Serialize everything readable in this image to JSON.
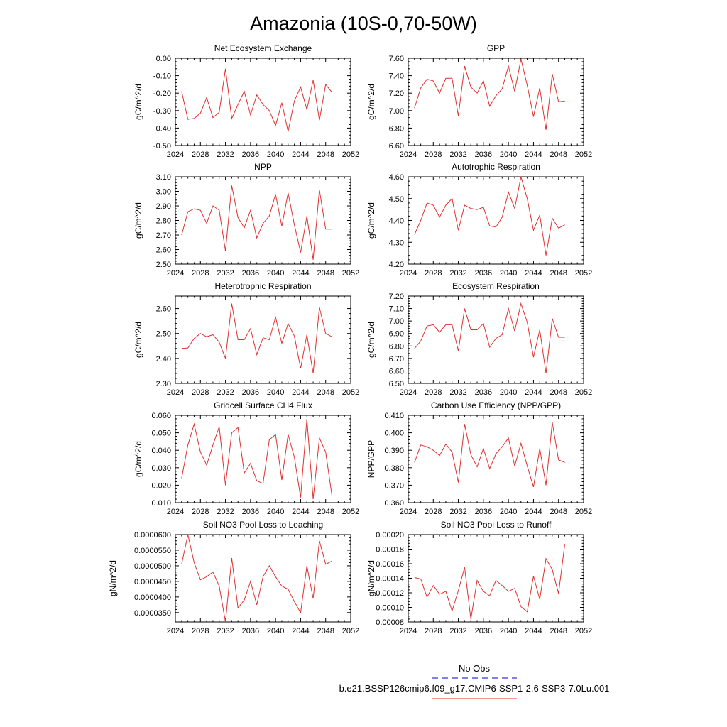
{
  "title": "Amazonia (10S-0,70-50W)",
  "legend": {
    "entries": [
      {
        "label": "No Obs",
        "color": "#0000cc",
        "dash": "dashed"
      },
      {
        "label": "b.e21.BSSP126cmip6.f09_g17.CMIP6-SSP1-2.6-SSP3-7.0Lu.001",
        "color": "#e03030",
        "dash": "solid"
      }
    ]
  },
  "chart_data": [
    {
      "type": "line",
      "title": "Net Ecosystem Exchange",
      "ylabel": "gC/m^2/d",
      "xlim": [
        2024,
        2052
      ],
      "ylim": [
        -0.5,
        0.0
      ],
      "xticks": [
        "2024",
        "2028",
        "2032",
        "2036",
        "2040",
        "2044",
        "2048",
        "2052"
      ],
      "yticks": [
        "0.00",
        "-0.10",
        "-0.20",
        "-0.30",
        "-0.40",
        "-0.50"
      ],
      "x": [
        2025,
        2026,
        2027,
        2028,
        2029,
        2030,
        2031,
        2032,
        2033,
        2034,
        2035,
        2036,
        2037,
        2038,
        2039,
        2040,
        2041,
        2042,
        2043,
        2044,
        2045,
        2046,
        2047,
        2048,
        2049
      ],
      "series": [
        {
          "color": "#e03030",
          "values": [
            -0.19,
            -0.35,
            -0.345,
            -0.315,
            -0.225,
            -0.34,
            -0.31,
            -0.06,
            -0.345,
            -0.265,
            -0.19,
            -0.325,
            -0.21,
            -0.265,
            -0.3,
            -0.385,
            -0.255,
            -0.42,
            -0.245,
            -0.165,
            -0.295,
            -0.125,
            -0.355,
            -0.15,
            -0.195
          ]
        }
      ]
    },
    {
      "type": "line",
      "title": "GPP",
      "ylabel": "gC/m^2/d",
      "xlim": [
        2024,
        2052
      ],
      "ylim": [
        6.6,
        7.6
      ],
      "xticks": [
        "2024",
        "2028",
        "2032",
        "2036",
        "2040",
        "2044",
        "2048",
        "2052"
      ],
      "yticks": [
        "7.60",
        "7.40",
        "7.20",
        "7.00",
        "6.80",
        "6.60"
      ],
      "x": [
        2025,
        2026,
        2027,
        2028,
        2029,
        2030,
        2031,
        2032,
        2033,
        2034,
        2035,
        2036,
        2037,
        2038,
        2039,
        2040,
        2041,
        2042,
        2043,
        2044,
        2045,
        2046,
        2047,
        2048,
        2049
      ],
      "series": [
        {
          "color": "#e03030",
          "values": [
            7.03,
            7.26,
            7.36,
            7.34,
            7.2,
            7.37,
            7.37,
            6.94,
            7.51,
            7.27,
            7.2,
            7.34,
            7.05,
            7.17,
            7.25,
            7.51,
            7.22,
            7.59,
            7.29,
            6.93,
            7.26,
            6.78,
            7.42,
            7.1,
            7.11
          ]
        }
      ]
    },
    {
      "type": "line",
      "title": "NPP",
      "ylabel": "gC/m^2/d",
      "xlim": [
        2024,
        2052
      ],
      "ylim": [
        2.5,
        3.1
      ],
      "xticks": [
        "2024",
        "2028",
        "2032",
        "2036",
        "2040",
        "2044",
        "2048",
        "2052"
      ],
      "yticks": [
        "3.10",
        "3.00",
        "2.90",
        "2.80",
        "2.70",
        "2.60",
        "2.50"
      ],
      "x": [
        2025,
        2026,
        2027,
        2028,
        2029,
        2030,
        2031,
        2032,
        2033,
        2034,
        2035,
        2036,
        2037,
        2038,
        2039,
        2040,
        2041,
        2042,
        2043,
        2044,
        2045,
        2046,
        2047,
        2048,
        2049
      ],
      "series": [
        {
          "color": "#e03030",
          "values": [
            2.7,
            2.86,
            2.88,
            2.87,
            2.78,
            2.9,
            2.87,
            2.59,
            3.04,
            2.82,
            2.75,
            2.87,
            2.68,
            2.78,
            2.83,
            2.98,
            2.76,
            2.99,
            2.77,
            2.58,
            2.83,
            2.53,
            3.01,
            2.74,
            2.74
          ]
        }
      ]
    },
    {
      "type": "line",
      "title": "Autotrophic Respiration",
      "ylabel": "gC/m^2/d",
      "xlim": [
        2024,
        2052
      ],
      "ylim": [
        4.2,
        4.6
      ],
      "xticks": [
        "2024",
        "2028",
        "2032",
        "2036",
        "2040",
        "2044",
        "2048",
        "2052"
      ],
      "yticks": [
        "4.60",
        "4.50",
        "4.40",
        "4.30",
        "4.20"
      ],
      "x": [
        2025,
        2026,
        2027,
        2028,
        2029,
        2030,
        2031,
        2032,
        2033,
        2034,
        2035,
        2036,
        2037,
        2038,
        2039,
        2040,
        2041,
        2042,
        2043,
        2044,
        2045,
        2046,
        2047,
        2048,
        2049
      ],
      "series": [
        {
          "color": "#e03030",
          "values": [
            4.335,
            4.4,
            4.48,
            4.47,
            4.415,
            4.47,
            4.5,
            4.355,
            4.47,
            4.455,
            4.45,
            4.46,
            4.375,
            4.37,
            4.415,
            4.53,
            4.455,
            4.6,
            4.5,
            4.355,
            4.425,
            4.24,
            4.41,
            4.365,
            4.38
          ]
        }
      ]
    },
    {
      "type": "line",
      "title": "Heterotrophic Respiration",
      "ylabel": "gC/m^2/d",
      "xlim": [
        2024,
        2052
      ],
      "ylim": [
        2.3,
        2.65
      ],
      "xticks": [
        "2024",
        "2028",
        "2032",
        "2036",
        "2040",
        "2044",
        "2048",
        "2052"
      ],
      "yticks": [
        "2.60",
        "2.50",
        "2.40",
        "2.30"
      ],
      "x": [
        2025,
        2026,
        2027,
        2028,
        2029,
        2030,
        2031,
        2032,
        2033,
        2034,
        2035,
        2036,
        2037,
        2038,
        2039,
        2040,
        2041,
        2042,
        2043,
        2044,
        2045,
        2046,
        2047,
        2048,
        2049
      ],
      "series": [
        {
          "color": "#e03030",
          "values": [
            2.44,
            2.442,
            2.48,
            2.5,
            2.487,
            2.495,
            2.465,
            2.4,
            2.62,
            2.475,
            2.475,
            2.52,
            2.415,
            2.483,
            2.475,
            2.565,
            2.46,
            2.54,
            2.49,
            2.36,
            2.495,
            2.34,
            2.605,
            2.5,
            2.487
          ]
        }
      ]
    },
    {
      "type": "line",
      "title": "Ecosystem Respiration",
      "ylabel": "gC/m^2/d",
      "xlim": [
        2024,
        2052
      ],
      "ylim": [
        6.5,
        7.2
      ],
      "xticks": [
        "2024",
        "2028",
        "2032",
        "2036",
        "2040",
        "2044",
        "2048",
        "2052"
      ],
      "yticks": [
        "7.20",
        "7.10",
        "7.00",
        "6.90",
        "6.80",
        "6.70",
        "6.60",
        "6.50"
      ],
      "x": [
        2025,
        2026,
        2027,
        2028,
        2029,
        2030,
        2031,
        2032,
        2033,
        2034,
        2035,
        2036,
        2037,
        2038,
        2039,
        2040,
        2041,
        2042,
        2043,
        2044,
        2045,
        2046,
        2047,
        2048,
        2049
      ],
      "series": [
        {
          "color": "#e03030",
          "values": [
            6.78,
            6.84,
            6.96,
            6.97,
            6.91,
            6.97,
            6.97,
            6.76,
            7.1,
            6.93,
            6.93,
            6.98,
            6.79,
            6.86,
            6.89,
            7.1,
            6.92,
            7.14,
            6.99,
            6.71,
            6.93,
            6.58,
            7.02,
            6.87,
            6.87
          ]
        }
      ]
    },
    {
      "type": "line",
      "title": "Gridcell Surface CH4 Flux",
      "ylabel": "gC/m^2/d",
      "xlim": [
        2024,
        2052
      ],
      "ylim": [
        0.01,
        0.06
      ],
      "xticks": [
        "2024",
        "2028",
        "2032",
        "2036",
        "2040",
        "2044",
        "2048",
        "2052"
      ],
      "yticks": [
        "0.060",
        "0.050",
        "0.040",
        "0.030",
        "0.020",
        "0.010"
      ],
      "x": [
        2025,
        2026,
        2027,
        2028,
        2029,
        2030,
        2031,
        2032,
        2033,
        2034,
        2035,
        2036,
        2037,
        2038,
        2039,
        2040,
        2041,
        2042,
        2043,
        2044,
        2045,
        2046,
        2047,
        2048,
        2049
      ],
      "series": [
        {
          "color": "#e03030",
          "values": [
            0.024,
            0.043,
            0.055,
            0.039,
            0.0315,
            0.043,
            0.0535,
            0.02,
            0.05,
            0.053,
            0.027,
            0.0325,
            0.0225,
            0.021,
            0.046,
            0.049,
            0.023,
            0.049,
            0.036,
            0.013,
            0.058,
            0.012,
            0.047,
            0.039,
            0.014
          ]
        }
      ]
    },
    {
      "type": "line",
      "title": "Carbon Use Efficiency (NPP/GPP)",
      "ylabel": "NPP/GPP",
      "xlim": [
        2024,
        2052
      ],
      "ylim": [
        0.36,
        0.41
      ],
      "xticks": [
        "2024",
        "2028",
        "2032",
        "2036",
        "2040",
        "2044",
        "2048",
        "2052"
      ],
      "yticks": [
        "0.410",
        "0.400",
        "0.390",
        "0.380",
        "0.370",
        "0.360"
      ],
      "x": [
        2025,
        2026,
        2027,
        2028,
        2029,
        2030,
        2031,
        2032,
        2033,
        2034,
        2035,
        2036,
        2037,
        2038,
        2039,
        2040,
        2041,
        2042,
        2043,
        2044,
        2045,
        2046,
        2047,
        2048,
        2049
      ],
      "series": [
        {
          "color": "#e03030",
          "values": [
            0.383,
            0.393,
            0.392,
            0.39,
            0.387,
            0.3935,
            0.389,
            0.3715,
            0.405,
            0.3875,
            0.3805,
            0.391,
            0.3795,
            0.388,
            0.392,
            0.397,
            0.381,
            0.394,
            0.381,
            0.369,
            0.391,
            0.37,
            0.406,
            0.3845,
            0.383
          ]
        }
      ]
    },
    {
      "type": "line",
      "title": "Soil NO3 Pool Loss to Leaching",
      "ylabel": "gN/m^2/d",
      "xlim": [
        2024,
        2052
      ],
      "ylim": [
        3.2e-05,
        6e-05
      ],
      "xticks": [
        "2024",
        "2028",
        "2032",
        "2036",
        "2040",
        "2044",
        "2048",
        "2052"
      ],
      "yticks": [
        "0.0000600",
        "0.0000550",
        "0.0000500",
        "0.0000450",
        "0.0000400",
        "0.0000350"
      ],
      "x": [
        2025,
        2026,
        2027,
        2028,
        2029,
        2030,
        2031,
        2032,
        2033,
        2034,
        2035,
        2036,
        2037,
        2038,
        2039,
        2040,
        2041,
        2042,
        2043,
        2044,
        2045,
        2046,
        2047,
        2048,
        2049
      ],
      "series": [
        {
          "color": "#e03030",
          "values": [
            5.05e-05,
            6e-05,
            5.1e-05,
            4.55e-05,
            4.65e-05,
            4.8e-05,
            4.35e-05,
            3.2e-05,
            5.25e-05,
            3.65e-05,
            3.9e-05,
            4.5e-05,
            3.75e-05,
            4.65e-05,
            5e-05,
            4.65e-05,
            4.35e-05,
            4.25e-05,
            3.85e-05,
            3.5e-05,
            5e-05,
            3.95e-05,
            5.8e-05,
            5.05e-05,
            5.15e-05
          ]
        }
      ]
    },
    {
      "type": "line",
      "title": "Soil NO3 Pool Loss to Runoff",
      "ylabel": "gN/m^2/d",
      "xlim": [
        2024,
        2052
      ],
      "ylim": [
        8e-05,
        0.0002
      ],
      "xticks": [
        "2024",
        "2028",
        "2032",
        "2036",
        "2040",
        "2044",
        "2048",
        "2052"
      ],
      "yticks": [
        "0.00020",
        "0.00018",
        "0.00016",
        "0.00014",
        "0.00012",
        "0.00010",
        "0.00008"
      ],
      "x": [
        2025,
        2026,
        2027,
        2028,
        2029,
        2030,
        2031,
        2032,
        2033,
        2034,
        2035,
        2036,
        2037,
        2038,
        2039,
        2040,
        2041,
        2042,
        2043,
        2044,
        2045,
        2046,
        2047,
        2048,
        2049
      ],
      "series": [
        {
          "color": "#e03030",
          "values": [
            0.000141,
            0.000139,
            0.000114,
            0.00013,
            0.000118,
            0.000122,
            9.5e-05,
            0.000123,
            0.000155,
            8.4e-05,
            0.000137,
            0.000122,
            0.000116,
            0.000137,
            0.00013,
            0.000122,
            0.000126,
            0.000101,
            9.4e-05,
            0.000143,
            0.000111,
            0.000167,
            0.000152,
            0.000119,
            0.000187
          ]
        }
      ]
    }
  ]
}
